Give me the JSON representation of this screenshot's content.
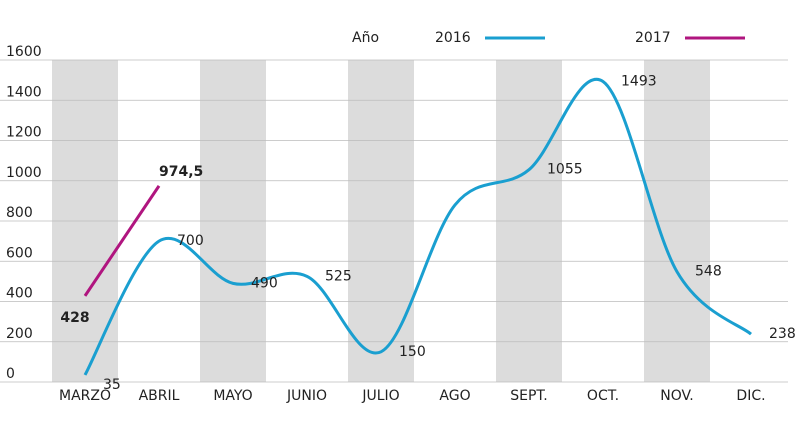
{
  "chart_data": {
    "type": "line",
    "legend_title": "Año",
    "categories": [
      "MARZO",
      "ABRIL",
      "MAYO",
      "JUNIO",
      "JULIO",
      "AGO",
      "SEPT.",
      "OCT.",
      "NOV.",
      "DIC."
    ],
    "series": [
      {
        "name": "2016",
        "color": "#1a9fd0",
        "values": [
          35,
          700,
          490,
          525,
          150,
          880,
          1055,
          1493,
          548,
          238
        ],
        "value_labels": [
          "35",
          "700",
          "490",
          "525",
          "150",
          null,
          "1055",
          "1493",
          "548",
          "238"
        ]
      },
      {
        "name": "2017",
        "color": "#b0157f",
        "values": [
          428,
          974.5,
          null,
          null,
          null,
          null,
          null,
          null,
          null,
          null
        ],
        "value_labels": [
          "428",
          "974,5",
          null,
          null,
          null,
          null,
          null,
          null,
          null,
          null
        ]
      }
    ],
    "ylim": [
      0,
      1600
    ],
    "yticks": [
      0,
      200,
      400,
      600,
      800,
      1000,
      1200,
      1400,
      1600
    ],
    "grid": true,
    "band_color": "#dcdcdc"
  }
}
